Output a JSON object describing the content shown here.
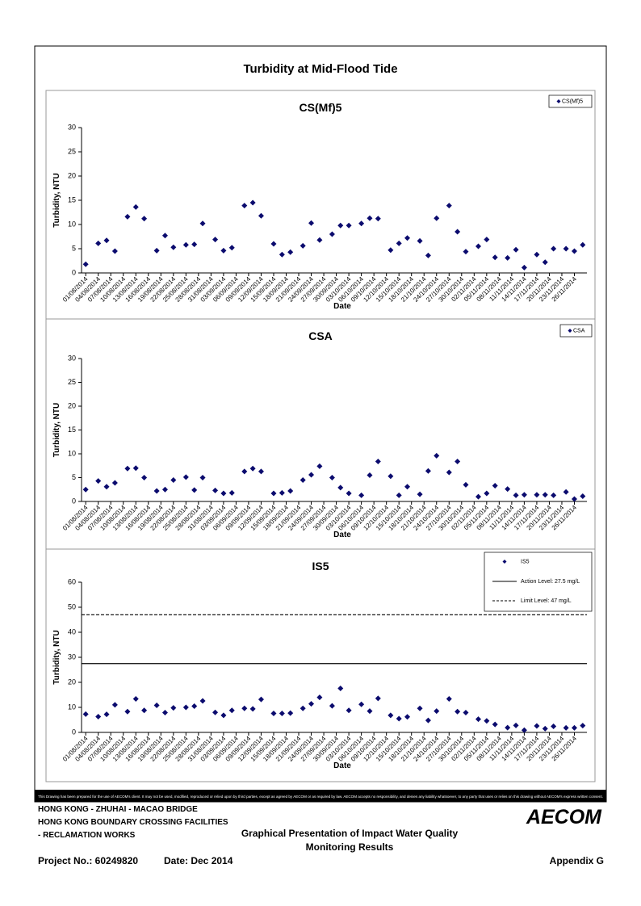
{
  "title": "Turbidity at Mid-Flood Tide",
  "chart_data": [
    {
      "type": "scatter",
      "title": "CS(Mf)5",
      "xlabel": "Date",
      "ylabel": "Turbidity, NTU",
      "x": [
        "01/08/2014",
        "04/08/2014",
        "06/08/2014",
        "08/08/2014",
        "11/08/2014",
        "13/08/2014",
        "15/08/2014",
        "18/08/2014",
        "20/08/2014",
        "22/08/2014",
        "25/08/2014",
        "27/08/2014",
        "29/08/2014",
        "01/09/2014",
        "03/09/2014",
        "05/09/2014",
        "08/09/2014",
        "10/09/2014",
        "12/09/2014",
        "15/09/2014",
        "17/09/2014",
        "19/09/2014",
        "22/09/2014",
        "24/09/2014",
        "26/09/2014",
        "29/09/2014",
        "01/10/2014",
        "03/10/2014",
        "06/10/2014",
        "08/10/2014",
        "10/10/2014",
        "13/10/2014",
        "15/10/2014",
        "17/10/2014",
        "20/10/2014",
        "22/10/2014",
        "24/10/2014",
        "27/10/2014",
        "29/10/2014",
        "31/10/2014",
        "03/11/2014",
        "05/11/2014",
        "07/11/2014",
        "10/11/2014",
        "12/11/2014",
        "14/11/2014",
        "17/11/2014",
        "19/11/2014",
        "21/11/2014",
        "24/11/2014",
        "26/11/2014",
        "28/11/2014"
      ],
      "series": [
        {
          "name": "CS(Mf)5",
          "color": "#0b0b6e",
          "values": [
            1.8,
            6.1,
            6.7,
            4.5,
            11.6,
            13.6,
            11.2,
            4.6,
            7.7,
            5.3,
            5.8,
            5.9,
            10.2,
            6.9,
            4.6,
            5.2,
            13.9,
            14.5,
            11.8,
            6,
            3.8,
            4.3,
            5.6,
            10.3,
            6.8,
            8,
            9.8,
            9.8,
            10.2,
            11.3,
            11.2,
            4.7,
            6.1,
            7.2,
            6.6,
            3.6,
            11.3,
            13.9,
            8.5,
            4.4,
            5.5,
            6.9,
            3.2,
            3.1,
            4.8,
            1.1,
            3.8,
            2.2,
            5,
            5,
            4.5,
            5.8
          ]
        }
      ],
      "xlim": [
        "31/07/2014",
        "29/11/2014"
      ],
      "xticks": [
        "01/08/2014",
        "04/08/2014",
        "07/08/2014",
        "10/08/2014",
        "13/08/2014",
        "16/08/2014",
        "19/08/2014",
        "22/08/2014",
        "25/08/2014",
        "28/08/2014",
        "31/08/2014",
        "03/09/2014",
        "06/09/2014",
        "09/09/2014",
        "12/09/2014",
        "15/09/2014",
        "18/09/2014",
        "21/09/2014",
        "24/09/2014",
        "27/09/2014",
        "30/09/2014",
        "03/10/2014",
        "06/10/2014",
        "09/10/2014",
        "12/10/2014",
        "15/10/2014",
        "18/10/2014",
        "21/10/2014",
        "24/10/2014",
        "27/10/2014",
        "30/10/2014",
        "02/11/2014",
        "05/11/2014",
        "08/11/2014",
        "11/11/2014",
        "14/11/2014",
        "17/11/2014",
        "20/11/2014",
        "23/11/2014",
        "26/11/2014"
      ],
      "ylim": [
        0,
        30
      ],
      "yticks": [
        0,
        5,
        10,
        15,
        20,
        25,
        30
      ]
    },
    {
      "type": "scatter",
      "title": "CSA",
      "xlabel": "Date",
      "ylabel": "Turbidity, NTU",
      "x": [
        "01/08/2014",
        "04/08/2014",
        "06/08/2014",
        "08/08/2014",
        "11/08/2014",
        "13/08/2014",
        "15/08/2014",
        "18/08/2014",
        "20/08/2014",
        "22/08/2014",
        "25/08/2014",
        "27/08/2014",
        "29/08/2014",
        "01/09/2014",
        "03/09/2014",
        "05/09/2014",
        "08/09/2014",
        "10/09/2014",
        "12/09/2014",
        "15/09/2014",
        "17/09/2014",
        "19/09/2014",
        "22/09/2014",
        "24/09/2014",
        "26/09/2014",
        "29/09/2014",
        "01/10/2014",
        "03/10/2014",
        "06/10/2014",
        "08/10/2014",
        "10/10/2014",
        "13/10/2014",
        "15/10/2014",
        "17/10/2014",
        "20/10/2014",
        "22/10/2014",
        "24/10/2014",
        "27/10/2014",
        "29/10/2014",
        "31/10/2014",
        "03/11/2014",
        "05/11/2014",
        "07/11/2014",
        "10/11/2014",
        "12/11/2014",
        "14/11/2014",
        "17/11/2014",
        "19/11/2014",
        "21/11/2014",
        "24/11/2014",
        "26/11/2014",
        "28/11/2014"
      ],
      "series": [
        {
          "name": "CSA",
          "color": "#0b0b6e",
          "values": [
            2.5,
            4.3,
            3.1,
            3.9,
            6.9,
            7,
            5,
            2.2,
            2.5,
            4.5,
            5.1,
            2.4,
            5,
            2.3,
            1.7,
            1.8,
            6.3,
            6.9,
            6.3,
            1.7,
            1.8,
            2.2,
            4.5,
            5.6,
            7.4,
            5,
            2.9,
            1.7,
            1.3,
            5.5,
            8.4,
            5.3,
            1.3,
            3.1,
            1.5,
            6.4,
            9.6,
            6.1,
            8.4,
            3.5,
            1,
            1.7,
            3.3,
            2.6,
            1.3,
            1.4,
            1.4,
            1.4,
            1.3,
            2,
            0.5,
            1.1
          ]
        }
      ],
      "xlim": [
        "31/07/2014",
        "29/11/2014"
      ],
      "xticks": [
        "01/08/2014",
        "04/08/2014",
        "07/08/2014",
        "10/08/2014",
        "13/08/2014",
        "16/08/2014",
        "19/08/2014",
        "22/08/2014",
        "25/08/2014",
        "28/08/2014",
        "31/08/2014",
        "03/09/2014",
        "06/09/2014",
        "09/09/2014",
        "12/09/2014",
        "15/09/2014",
        "18/09/2014",
        "21/09/2014",
        "24/09/2014",
        "27/09/2014",
        "30/09/2014",
        "03/10/2014",
        "06/10/2014",
        "09/10/2014",
        "12/10/2014",
        "15/10/2014",
        "18/10/2014",
        "21/10/2014",
        "24/10/2014",
        "27/10/2014",
        "30/10/2014",
        "02/11/2014",
        "05/11/2014",
        "08/11/2014",
        "11/11/2014",
        "14/11/2014",
        "17/11/2014",
        "20/11/2014",
        "23/11/2014",
        "26/11/2014"
      ],
      "ylim": [
        0,
        30
      ],
      "yticks": [
        0,
        5,
        10,
        15,
        20,
        25,
        30
      ]
    },
    {
      "type": "scatter",
      "title": "IS5",
      "xlabel": "Date",
      "ylabel": "Turbidity, NTU",
      "x": [
        "01/08/2014",
        "04/08/2014",
        "06/08/2014",
        "08/08/2014",
        "11/08/2014",
        "13/08/2014",
        "15/08/2014",
        "18/08/2014",
        "20/08/2014",
        "22/08/2014",
        "25/08/2014",
        "27/08/2014",
        "29/08/2014",
        "01/09/2014",
        "03/09/2014",
        "05/09/2014",
        "08/09/2014",
        "10/09/2014",
        "12/09/2014",
        "15/09/2014",
        "17/09/2014",
        "19/09/2014",
        "22/09/2014",
        "24/09/2014",
        "26/09/2014",
        "29/09/2014",
        "01/10/2014",
        "03/10/2014",
        "06/10/2014",
        "08/10/2014",
        "10/10/2014",
        "13/10/2014",
        "15/10/2014",
        "17/10/2014",
        "20/10/2014",
        "22/10/2014",
        "24/10/2014",
        "27/10/2014",
        "29/10/2014",
        "31/10/2014",
        "03/11/2014",
        "05/11/2014",
        "07/11/2014",
        "10/11/2014",
        "12/11/2014",
        "14/11/2014",
        "17/11/2014",
        "19/11/2014",
        "21/11/2014",
        "24/11/2014",
        "26/11/2014",
        "28/11/2014"
      ],
      "series": [
        {
          "name": "IS5",
          "color": "#0b0b6e",
          "values": [
            7.3,
            6.3,
            7.2,
            11,
            8.3,
            13.4,
            8.8,
            10.8,
            7.9,
            9.8,
            10,
            10.5,
            12.6,
            8,
            6.8,
            8.8,
            9.6,
            9.4,
            13.2,
            7.6,
            7.6,
            7.7,
            9.6,
            11.4,
            14,
            10.6,
            17.6,
            8.8,
            11.2,
            8.5,
            13.6,
            6.8,
            5.5,
            6.2,
            9.6,
            4.8,
            8.5,
            13.4,
            8.3,
            7.9,
            5.3,
            4.6,
            3.2,
            1.9,
            2.8,
            0.9,
            2.6,
            1.5,
            2.4,
            1.8,
            1.8,
            2.7
          ]
        }
      ],
      "lines": [
        {
          "name": "Action Level: 27.5 mg/L",
          "value": 27.5,
          "dash": false
        },
        {
          "name": "Limit Level: 47 mg/L",
          "value": 47,
          "dash": true
        }
      ],
      "xlim": [
        "31/07/2014",
        "29/11/2014"
      ],
      "xticks": [
        "01/08/2014",
        "04/08/2014",
        "07/08/2014",
        "10/08/2014",
        "13/08/2014",
        "16/08/2014",
        "19/08/2014",
        "22/08/2014",
        "25/08/2014",
        "28/08/2014",
        "31/08/2014",
        "03/09/2014",
        "06/09/2014",
        "09/09/2014",
        "12/09/2014",
        "15/09/2014",
        "18/09/2014",
        "21/09/2014",
        "24/09/2014",
        "27/09/2014",
        "30/09/2014",
        "03/10/2014",
        "06/10/2014",
        "09/10/2014",
        "12/10/2014",
        "15/10/2014",
        "18/10/2014",
        "21/10/2014",
        "24/10/2014",
        "27/10/2014",
        "30/10/2014",
        "02/11/2014",
        "05/11/2014",
        "08/11/2014",
        "11/11/2014",
        "14/11/2014",
        "17/11/2014",
        "20/11/2014",
        "23/11/2014",
        "26/11/2014"
      ],
      "ylim": [
        0,
        60
      ],
      "yticks": [
        0,
        10,
        20,
        30,
        40,
        50,
        60
      ]
    }
  ],
  "footer": {
    "disclaimer": "This Drawing has been prepared for the use of AECOM's client. It may not be used, modified, reproduced or relied upon by third parties, except as agreed by AECOM or as required by law. AECOM accepts no responsibility, and denies any liability whatsoever, to any party that uses or relies on this drawing without AECOM's express written consent.",
    "project_lines": [
      "HONG KONG - ZHUHAI - MACAO BRIDGE",
      "HONG KONG BOUNDARY CROSSING FACILITIES",
      "- RECLAMATION WORKS"
    ],
    "heading": [
      "Graphical Presentation of Impact Water Quality",
      "Monitoring Results"
    ],
    "project_no": "Project No.: 60249820",
    "date": "Date: Dec 2014",
    "appendix": "Appendix G",
    "logo": "AECOM"
  }
}
